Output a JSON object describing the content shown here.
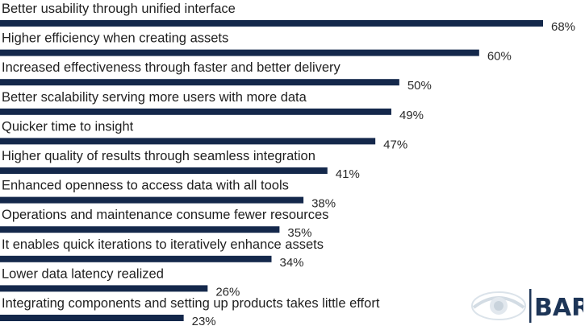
{
  "chart_data": {
    "type": "bar",
    "orientation": "horizontal",
    "categories": [
      "Better usability through unified interface",
      "Higher efficiency when creating assets",
      "Increased effectiveness through faster and better delivery",
      "Better scalability serving more users with more data",
      "Quicker time to insight",
      "Higher quality of results through seamless integration",
      "Enhanced openness to access data with all tools",
      "Operations and maintenance consume fewer resources",
      "It enables quick iterations to iteratively enhance assets",
      "Lower data latency realized",
      "Integrating components and setting up products takes little effort"
    ],
    "values": [
      68,
      60,
      50,
      49,
      47,
      41,
      38,
      35,
      34,
      26,
      23
    ],
    "value_labels": [
      "68%",
      "60%",
      "50%",
      "49%",
      "47%",
      "41%",
      "38%",
      "35%",
      "34%",
      "26%",
      "23%"
    ],
    "unit": "%",
    "xlim": [
      0,
      68
    ],
    "grid": false,
    "bar_color": "#14284b"
  },
  "logo": {
    "text": "BARC",
    "icon": "eye-icon",
    "color": "#1d3557"
  }
}
